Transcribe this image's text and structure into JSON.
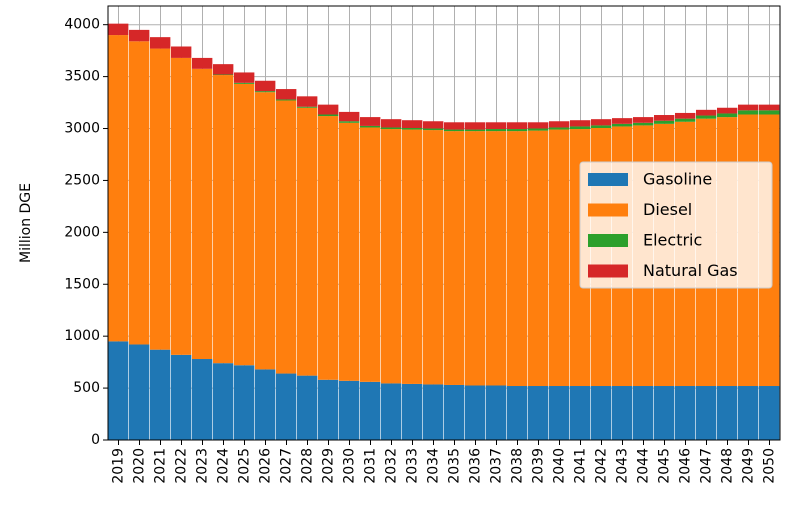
{
  "chart_data": {
    "type": "stacked_bar",
    "y_label": "Million DGE",
    "categories": [
      "2019",
      "2020",
      "2021",
      "2022",
      "2023",
      "2024",
      "2025",
      "2026",
      "2027",
      "2028",
      "2029",
      "2030",
      "2031",
      "2032",
      "2033",
      "2034",
      "2035",
      "2036",
      "2037",
      "2038",
      "2039",
      "2040",
      "2041",
      "2042",
      "2043",
      "2044",
      "2045",
      "2046",
      "2047",
      "2048",
      "2049",
      "2050"
    ],
    "series": [
      {
        "name": "Gasoline",
        "color": "#1f77b4",
        "values": [
          950,
          920,
          870,
          820,
          780,
          740,
          720,
          680,
          640,
          620,
          580,
          570,
          560,
          545,
          540,
          535,
          530,
          525,
          525,
          520,
          520,
          520,
          520,
          520,
          520,
          520,
          520,
          520,
          520,
          520,
          520,
          520
        ]
      },
      {
        "name": "Diesel",
        "color": "#ff7f0e",
        "values": [
          2950,
          2920,
          2900,
          2860,
          2795,
          2775,
          2710,
          2670,
          2630,
          2580,
          2540,
          2485,
          2450,
          2450,
          2450,
          2450,
          2445,
          2450,
          2450,
          2455,
          2460,
          2470,
          2475,
          2485,
          2500,
          2510,
          2525,
          2545,
          2575,
          2590,
          2615,
          2615
        ]
      },
      {
        "name": "Electric",
        "color": "#2ca02c",
        "values": [
          0,
          0,
          0,
          0,
          0,
          5,
          10,
          10,
          10,
          10,
          15,
          15,
          15,
          15,
          15,
          15,
          15,
          15,
          20,
          20,
          20,
          20,
          25,
          25,
          25,
          25,
          30,
          30,
          30,
          35,
          40,
          40
        ]
      },
      {
        "name": "Natural Gas",
        "color": "#d62728",
        "values": [
          110,
          110,
          110,
          110,
          105,
          100,
          100,
          100,
          100,
          100,
          95,
          90,
          85,
          80,
          75,
          70,
          70,
          70,
          65,
          65,
          60,
          60,
          60,
          60,
          55,
          55,
          55,
          55,
          55,
          55,
          55,
          55
        ]
      }
    ],
    "ylim": [
      0,
      4180
    ],
    "yticks": [
      0,
      500,
      1000,
      1500,
      2000,
      2500,
      3000,
      3500,
      4000
    ],
    "grid": true,
    "legend": "center right"
  }
}
